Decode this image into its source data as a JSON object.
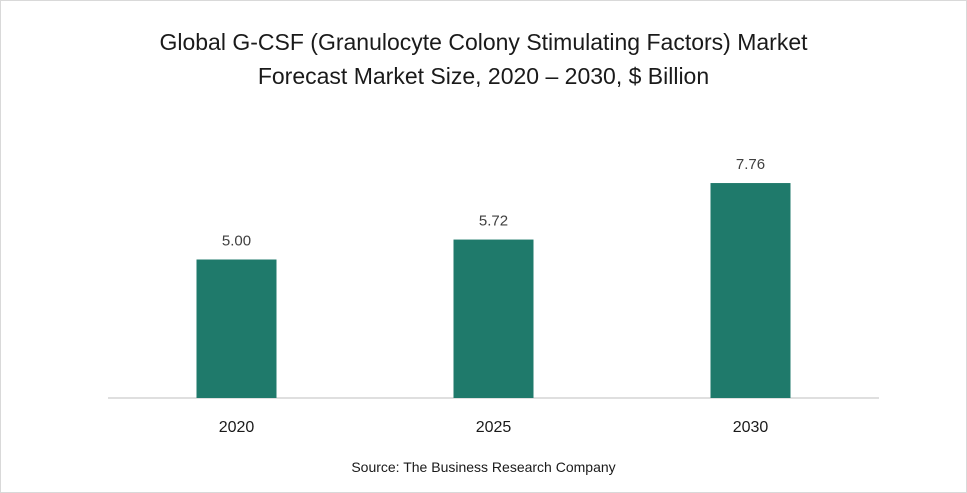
{
  "chart_data": {
    "type": "bar",
    "title_lines": [
      "Global G-CSF (Granulocyte Colony Stimulating Factors) Market",
      "Forecast Market Size, 2020 – 2030, $ Billion"
    ],
    "categories": [
      "2020",
      "2025",
      "2030"
    ],
    "values": [
      5.0,
      5.72,
      7.76
    ],
    "value_labels": [
      "5.00",
      "5.72",
      "7.76"
    ],
    "ylim": [
      0,
      10
    ],
    "grid": false,
    "legend": "none",
    "bar_color": "#1f7a6b",
    "source": "Source: The Business Research Company"
  }
}
